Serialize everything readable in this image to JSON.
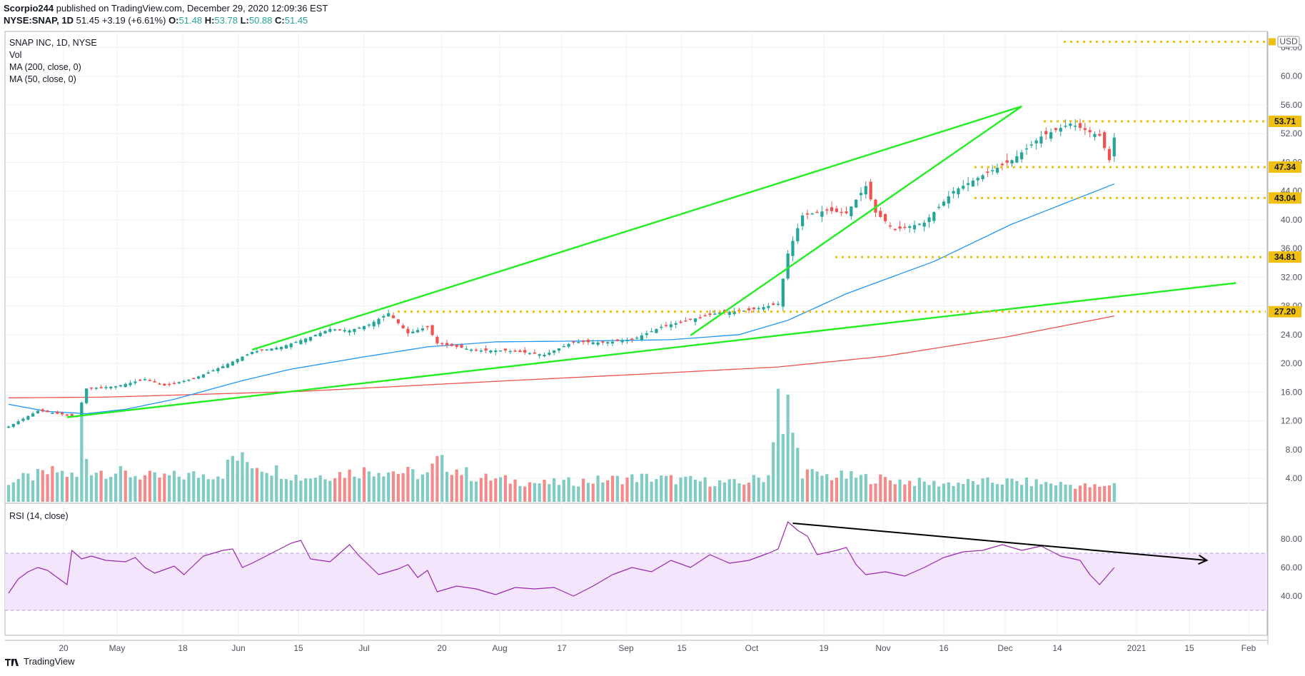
{
  "header": {
    "author": "Scorpio244",
    "published_text": "published on TradingView.com, December 29, 2020 12:09:36 EST",
    "symbol": "NYSE:SNAP, 1D",
    "last": "51.45",
    "change": "+3.19 (+6.61%)",
    "open_label": "O:",
    "open": "51.48",
    "high_label": "H:",
    "high": "53.78",
    "low_label": "L:",
    "low": "50.88",
    "close_label": "C:",
    "close": "51.45"
  },
  "legend": {
    "title": "SNAP INC, 1D, NYSE",
    "vol": "Vol",
    "ma200": "MA (200, close, 0)",
    "ma50": "MA (50, close, 0)",
    "rsi": "RSI (14, close)"
  },
  "footer": {
    "brand": "TradingView"
  },
  "colors": {
    "up": "#26a69a",
    "down": "#ef5350",
    "vol_up": "#80cbc4",
    "vol_down": "#f48b8b",
    "ma50": "#2196f3",
    "ma200": "#ef5350",
    "trend": "#22ee22",
    "level": "#f0c010",
    "rsi": "#9c27b0",
    "rsi_band": "#f3e5fc",
    "arrow": "#000000"
  },
  "chart_data": [
    {
      "type": "candlestick",
      "title": "SNAP INC, 1D, NYSE",
      "currency": "USD",
      "x_ticks": [
        "20",
        "May",
        "18",
        "Jun",
        "15",
        "Jul",
        "20",
        "Aug",
        "17",
        "Sep",
        "15",
        "Oct",
        "19",
        "Nov",
        "16",
        "Dec",
        "14",
        "2021",
        "15",
        "Feb"
      ],
      "y_ticks": [
        "4.00",
        "8.00",
        "12.00",
        "16.00",
        "20.00",
        "24.00",
        "28.00",
        "32.00",
        "36.00",
        "40.00",
        "44.00",
        "48.00",
        "52.00",
        "56.00",
        "60.00",
        "64.00"
      ],
      "ylim": [
        0,
        64
      ],
      "horizontal_levels": [
        {
          "label": "53.71",
          "value": 53.71
        },
        {
          "label": "47.34",
          "value": 47.34
        },
        {
          "label": "43.04",
          "value": 43.04
        },
        {
          "label": "34.81",
          "value": 34.81
        },
        {
          "label": "27.20",
          "value": 27.2
        },
        {
          "label": "",
          "value": 64.8
        }
      ],
      "close_anchors": [
        [
          0,
          11.2
        ],
        [
          6,
          13.4
        ],
        [
          10,
          13.0
        ],
        [
          14,
          12.6
        ],
        [
          16,
          16.5
        ],
        [
          22,
          16.8
        ],
        [
          28,
          17.8
        ],
        [
          32,
          16.9
        ],
        [
          38,
          17.9
        ],
        [
          44,
          19.6
        ],
        [
          50,
          21.6
        ],
        [
          56,
          22.3
        ],
        [
          62,
          23.7
        ],
        [
          66,
          24.8
        ],
        [
          70,
          24.6
        ],
        [
          74,
          25.4
        ],
        [
          78,
          27.0
        ],
        [
          82,
          24.2
        ],
        [
          86,
          25.1
        ],
        [
          88,
          22.8
        ],
        [
          92,
          22.3
        ],
        [
          96,
          21.8
        ],
        [
          102,
          21.8
        ],
        [
          110,
          21.2
        ],
        [
          116,
          23.0
        ],
        [
          122,
          22.9
        ],
        [
          128,
          23.3
        ],
        [
          134,
          25.1
        ],
        [
          140,
          26.1
        ],
        [
          146,
          27.1
        ],
        [
          152,
          27.4
        ],
        [
          158,
          28.3
        ],
        [
          160,
          35.3
        ],
        [
          163,
          40.6
        ],
        [
          168,
          41.3
        ],
        [
          172,
          40.9
        ],
        [
          176,
          44.7
        ],
        [
          178,
          41.0
        ],
        [
          182,
          38.6
        ],
        [
          188,
          39.6
        ],
        [
          194,
          44.0
        ],
        [
          200,
          46.2
        ],
        [
          206,
          48.3
        ],
        [
          212,
          51.6
        ],
        [
          218,
          53.4
        ],
        [
          222,
          52.2
        ],
        [
          224,
          51.7
        ],
        [
          226,
          48.3
        ],
        [
          227,
          51.45
        ]
      ],
      "volume_anchors": [
        [
          0,
          1.0
        ],
        [
          10,
          1.5
        ],
        [
          14,
          1.2
        ],
        [
          15,
          4.0
        ],
        [
          16,
          2.2
        ],
        [
          17,
          1.6
        ],
        [
          30,
          1.2
        ],
        [
          44,
          1.4
        ],
        [
          46,
          2.2
        ],
        [
          60,
          1.2
        ],
        [
          76,
          1.6
        ],
        [
          86,
          1.3
        ],
        [
          88,
          2.0
        ],
        [
          96,
          1.2
        ],
        [
          110,
          0.9
        ],
        [
          130,
          1.2
        ],
        [
          150,
          0.9
        ],
        [
          156,
          1.3
        ],
        [
          158,
          5.7
        ],
        [
          159,
          3.0
        ],
        [
          160,
          4.7
        ],
        [
          161,
          3.4
        ],
        [
          163,
          1.5
        ],
        [
          166,
          1.3
        ],
        [
          175,
          1.2
        ],
        [
          190,
          0.9
        ],
        [
          205,
          1.0
        ],
        [
          215,
          0.9
        ],
        [
          225,
          0.7
        ],
        [
          227,
          1.0
        ]
      ],
      "ma50_anchors": [
        [
          0,
          14.3
        ],
        [
          8,
          13.3
        ],
        [
          16,
          13.0
        ],
        [
          24,
          13.6
        ],
        [
          34,
          15.0
        ],
        [
          48,
          17.6
        ],
        [
          58,
          19.2
        ],
        [
          72,
          20.8
        ],
        [
          86,
          22.3
        ],
        [
          100,
          23.0
        ],
        [
          116,
          23.1
        ],
        [
          136,
          23.3
        ],
        [
          150,
          24.0
        ],
        [
          160,
          26.0
        ],
        [
          172,
          29.7
        ],
        [
          190,
          34.2
        ],
        [
          206,
          39.4
        ],
        [
          227,
          45.0
        ]
      ],
      "ma200_anchors": [
        [
          0,
          15.2
        ],
        [
          20,
          15.3
        ],
        [
          60,
          16.1
        ],
        [
          100,
          17.5
        ],
        [
          130,
          18.5
        ],
        [
          158,
          19.5
        ],
        [
          180,
          21.0
        ],
        [
          205,
          23.7
        ],
        [
          227,
          26.6
        ]
      ],
      "trendlines": [
        {
          "from": [
            12,
            12.5
          ],
          "to": [
            252,
            31.2
          ]
        },
        {
          "from": [
            50,
            21.9
          ],
          "to": [
            208,
            55.8
          ]
        },
        {
          "from": [
            140,
            23.9
          ],
          "to": [
            208,
            55.8
          ]
        }
      ],
      "last_bar_index": 227,
      "total_bar_slots": 254
    },
    {
      "type": "line",
      "title": "RSI (14, close)",
      "y_ticks": [
        "40.00",
        "60.00",
        "80.00"
      ],
      "ylim": [
        25,
        95
      ],
      "band": [
        30,
        70
      ],
      "rsi_anchors": [
        [
          0,
          42
        ],
        [
          2,
          52
        ],
        [
          4,
          57
        ],
        [
          6,
          60
        ],
        [
          8,
          58
        ],
        [
          10,
          53
        ],
        [
          12,
          48
        ],
        [
          13,
          72
        ],
        [
          15,
          66
        ],
        [
          17,
          68
        ],
        [
          20,
          65
        ],
        [
          24,
          64
        ],
        [
          26,
          67
        ],
        [
          28,
          60
        ],
        [
          30,
          56
        ],
        [
          34,
          61
        ],
        [
          36,
          55
        ],
        [
          40,
          68
        ],
        [
          44,
          72
        ],
        [
          46,
          73
        ],
        [
          48,
          60
        ],
        [
          50,
          63
        ],
        [
          54,
          70
        ],
        [
          58,
          77
        ],
        [
          60,
          79
        ],
        [
          62,
          66
        ],
        [
          66,
          64
        ],
        [
          70,
          76
        ],
        [
          72,
          68
        ],
        [
          76,
          55
        ],
        [
          80,
          59
        ],
        [
          82,
          62
        ],
        [
          84,
          53
        ],
        [
          86,
          58
        ],
        [
          88,
          43
        ],
        [
          92,
          47
        ],
        [
          96,
          45
        ],
        [
          100,
          41
        ],
        [
          104,
          46
        ],
        [
          108,
          45
        ],
        [
          112,
          46
        ],
        [
          116,
          40
        ],
        [
          120,
          47
        ],
        [
          124,
          55
        ],
        [
          128,
          60
        ],
        [
          132,
          57
        ],
        [
          136,
          65
        ],
        [
          140,
          60
        ],
        [
          144,
          69
        ],
        [
          148,
          63
        ],
        [
          152,
          65
        ],
        [
          156,
          70
        ],
        [
          158,
          73
        ],
        [
          160,
          92
        ],
        [
          162,
          86
        ],
        [
          164,
          82
        ],
        [
          166,
          69
        ],
        [
          170,
          72
        ],
        [
          172,
          74
        ],
        [
          174,
          62
        ],
        [
          176,
          55
        ],
        [
          180,
          57
        ],
        [
          184,
          54
        ],
        [
          188,
          60
        ],
        [
          192,
          67
        ],
        [
          196,
          71
        ],
        [
          200,
          72
        ],
        [
          204,
          76
        ],
        [
          208,
          72
        ],
        [
          212,
          75
        ],
        [
          216,
          68
        ],
        [
          220,
          65
        ],
        [
          222,
          55
        ],
        [
          224,
          48
        ],
        [
          227,
          60
        ]
      ],
      "divergence_line": {
        "from": [
          161,
          91
        ],
        "to": [
          246,
          65
        ]
      }
    }
  ]
}
